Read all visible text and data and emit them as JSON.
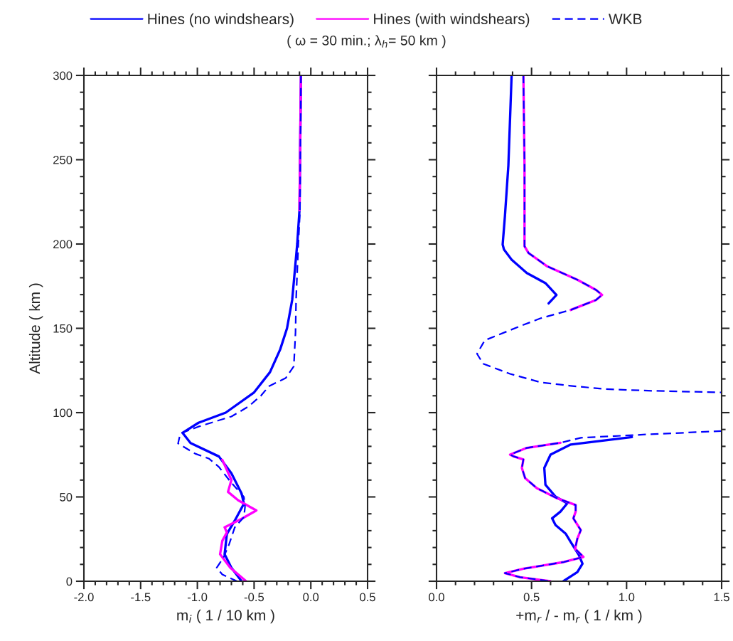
{
  "chart_data": [
    {
      "type": "line",
      "subtitle": "( ω = 30 min.; λ$_{h}$= 50 km )",
      "xlabel": "m$_{i}$ ( 1 / 10 km )",
      "ylabel": "Altitude ( km )",
      "xlim": [
        -2.0,
        0.5
      ],
      "xticks": [
        {
          "value": -2.0,
          "label": "-2.0"
        },
        {
          "value": -1.5,
          "label": "-1.5"
        },
        {
          "value": -1.0,
          "label": "-1.0"
        },
        {
          "value": -0.5,
          "label": "-0.5"
        },
        {
          "value": 0.0,
          "label": "0.0"
        },
        {
          "value": 0.5,
          "label": "0.5"
        }
      ],
      "ylim": [
        0,
        300
      ],
      "yticks": [
        0,
        50,
        100,
        150,
        200,
        250,
        300
      ],
      "grid": false,
      "legend": "top",
      "series": [
        {
          "name": "Hines (no windshears)",
          "color": "#0000ff",
          "line_style": "solid",
          "x": [
            -0.087,
            -0.1,
            -0.12,
            -0.164,
            -0.21,
            -0.27,
            -0.36,
            -0.5,
            -0.75,
            -0.99,
            -1.13,
            -1.06,
            -0.81,
            -0.7,
            -0.61,
            -0.59,
            -0.67,
            -0.74,
            -0.76,
            -0.7,
            -0.61
          ],
          "values": [
            300,
            220,
            200,
            167,
            150,
            137.5,
            124,
            112,
            100,
            94,
            88,
            82,
            74,
            64,
            52,
            46,
            36,
            28,
            16,
            8,
            0
          ]
        },
        {
          "name": "Hines (with windshears)",
          "color": "#ff00ff",
          "line_style": "solid",
          "x": [
            -0.087,
            -0.1,
            null,
            -0.78,
            -0.7,
            -0.73,
            -0.64,
            -0.48,
            -0.61,
            -0.76,
            -0.74,
            -0.78,
            -0.8,
            -0.71,
            -0.57
          ],
          "values": [
            300,
            220,
            null,
            72,
            60,
            53,
            48,
            42,
            37,
            32,
            29,
            24,
            16,
            8,
            0
          ]
        },
        {
          "name": "WKB",
          "color": "#0000ff",
          "line_style": "dashed",
          "x": [
            -0.087,
            -0.096,
            -0.11,
            -0.13,
            -0.135,
            -0.15,
            -0.22,
            -0.37,
            -0.44,
            -0.55,
            -0.7,
            -0.99,
            -1.15,
            -1.17,
            -1.02,
            -0.9,
            -0.81,
            -0.72,
            -0.59,
            -0.58,
            -0.59,
            -0.67,
            -0.72,
            -0.77,
            -0.83,
            -0.78,
            -0.65
          ],
          "values": [
            300,
            219,
            200,
            167,
            147.5,
            127.5,
            120.6,
            115.6,
            110,
            103.6,
            97.7,
            91.7,
            87.7,
            81.7,
            75.7,
            72.8,
            67.8,
            60,
            50,
            44,
            38,
            32,
            22,
            14,
            8,
            4,
            0
          ]
        }
      ]
    },
    {
      "type": "line",
      "xlabel": "+m$_{r}$ / - m$_{r}$ ( 1 / km )",
      "xlim": [
        0.0,
        1.5
      ],
      "xticks": [
        {
          "value": 0.0,
          "label": "0.0"
        },
        {
          "value": 0.5,
          "label": "0.5"
        },
        {
          "value": 1.0,
          "label": "1.0"
        },
        {
          "value": 1.5,
          "label": "1.5"
        }
      ],
      "ylim": [
        0,
        300
      ],
      "yticks": [
        0,
        50,
        100,
        150,
        200,
        250,
        300
      ],
      "tick_labels": "x",
      "grid": false,
      "series": [
        {
          "color": "#0000ff",
          "line_style": "solid",
          "x": [
            0.395,
            0.378,
            0.36,
            0.348,
            0.355,
            0.395,
            0.475,
            0.573,
            0.631,
            0.59,
            null,
            1.028,
            0.706,
            0.6,
            0.567,
            0.573,
            0.626,
            0.688,
            0.652,
            0.608,
            0.626,
            0.679,
            0.706,
            0.75,
            0.768,
            0.741,
            0.667
          ],
          "values": [
            300,
            246.6,
            216.7,
            199.7,
            196.7,
            190.7,
            182.8,
            176.8,
            169.8,
            164.8,
            null,
            85.5,
            81.1,
            75.1,
            67.2,
            57.2,
            50.2,
            46.2,
            41.3,
            37.3,
            33.3,
            28.3,
            23.3,
            15.3,
            10.4,
            5.4,
            0
          ]
        },
        {
          "color": "#ff00ff",
          "line_style": "solid",
          "x": [
            0.457,
            0.463,
            0.463,
            0.484,
            0.582,
            0.741,
            0.839,
            0.871,
            0.839,
            0.706,
            null,
            0.652,
            0.475,
            0.387,
            0.404,
            0.457,
            0.449,
            0.466,
            0.528,
            0.635,
            0.732,
            0.732,
            0.72,
            0.759,
            0.741,
            0.729,
            0.773,
            0.67,
            0.457,
            0.36,
            0.44,
            0.599
          ],
          "values": [
            300,
            246.6,
            198.7,
            194.7,
            186.8,
            178.8,
            172.8,
            169.8,
            166.8,
            160.9,
            null,
            82.1,
            79.1,
            75.1,
            74.1,
            72.2,
            67.2,
            61.2,
            55.2,
            49.2,
            45.2,
            41.3,
            37.3,
            30.3,
            25.3,
            19.3,
            14.4,
            11.4,
            7.4,
            4.8,
            2.4,
            0
          ]
        },
        {
          "color": "#0000ff",
          "line_style": "dashed",
          "x": [
            0.457,
            0.463,
            0.463,
            0.484,
            0.582,
            0.741,
            0.839,
            0.871,
            0.839,
            0.706,
            0.546,
            0.431,
            0.254,
            0.213,
            0.245,
            0.387,
            0.546,
            0.697,
            0.883,
            1.113,
            1.5,
            null,
            1.5,
            1.113,
            0.759,
            0.652,
            0.475,
            0.387,
            0.404,
            0.457,
            0.449,
            0.466,
            0.528,
            0.635,
            0.732,
            0.732,
            0.72,
            0.759,
            0.741,
            0.729,
            0.773,
            0.67,
            0.457,
            0.36,
            0.44,
            0.599
          ],
          "values": [
            300,
            246.6,
            198.7,
            194.7,
            186.8,
            178.8,
            172.8,
            169.8,
            166.8,
            160.9,
            155.9,
            150.9,
            142.9,
            134.9,
            129,
            123,
            118,
            116,
            114,
            113,
            112,
            null,
            89.1,
            87.1,
            85.1,
            82.1,
            79.1,
            75.1,
            74.1,
            72.2,
            67.2,
            61.2,
            55.2,
            49.2,
            45.2,
            41.3,
            37.3,
            30.3,
            25.3,
            19.3,
            14.4,
            11.4,
            7.4,
            4.8,
            2.4,
            0
          ]
        }
      ]
    }
  ]
}
